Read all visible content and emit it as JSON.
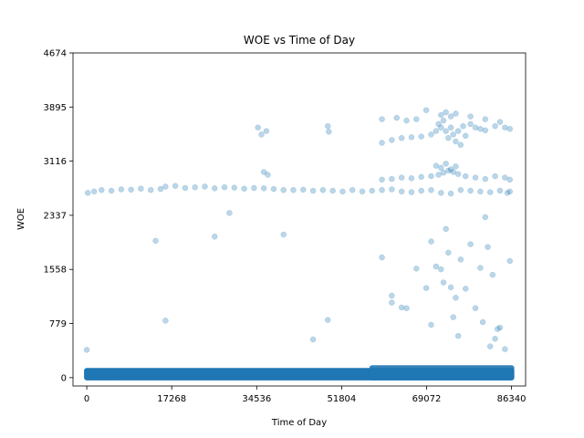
{
  "chart_data": {
    "type": "scatter",
    "title": "WOE vs Time of Day",
    "xlabel": "Time of Day",
    "ylabel": "WOE",
    "xlim": [
      -2800,
      89200
    ],
    "ylim": [
      -120,
      4674
    ],
    "x_ticks": [
      0,
      17268,
      34536,
      51804,
      69072,
      86340
    ],
    "x_tick_labels": [
      "0",
      "17268",
      "34536",
      "51804",
      "69072",
      "86340"
    ],
    "y_ticks": [
      0,
      779,
      1558,
      2337,
      3116,
      3895,
      4674
    ],
    "y_tick_labels": [
      "0",
      "779",
      "1558",
      "2337",
      "3116",
      "3895",
      "4674"
    ],
    "grid": false,
    "marker_color": "#1f77b4",
    "marker_alpha": 0.15,
    "series": [
      {
        "points": [
          [
            200,
            2660
          ],
          [
            1500,
            2680
          ],
          [
            3000,
            2700
          ],
          [
            5000,
            2690
          ],
          [
            7000,
            2710
          ],
          [
            9000,
            2705
          ],
          [
            11000,
            2720
          ],
          [
            13000,
            2700
          ],
          [
            15000,
            2715
          ],
          [
            16000,
            2750
          ],
          [
            18000,
            2760
          ],
          [
            20000,
            2730
          ],
          [
            22000,
            2740
          ],
          [
            24000,
            2750
          ],
          [
            26000,
            2725
          ],
          [
            28000,
            2740
          ],
          [
            30000,
            2735
          ],
          [
            32000,
            2720
          ],
          [
            34000,
            2730
          ],
          [
            36000,
            2725
          ],
          [
            38000,
            2715
          ],
          [
            40000,
            2700
          ],
          [
            42000,
            2700
          ],
          [
            44000,
            2705
          ],
          [
            46000,
            2690
          ],
          [
            48000,
            2700
          ],
          [
            50000,
            2690
          ],
          [
            52000,
            2680
          ],
          [
            54000,
            2700
          ],
          [
            56000,
            2680
          ],
          [
            58000,
            2690
          ],
          [
            60000,
            2700
          ],
          [
            62000,
            2710
          ],
          [
            64000,
            2680
          ],
          [
            66000,
            2670
          ],
          [
            68000,
            2690
          ],
          [
            70000,
            2700
          ],
          [
            72000,
            2660
          ],
          [
            74000,
            2650
          ],
          [
            76000,
            2700
          ],
          [
            78000,
            2690
          ],
          [
            80000,
            2680
          ],
          [
            82000,
            2670
          ],
          [
            84000,
            2690
          ],
          [
            85500,
            2660
          ],
          [
            86000,
            2680
          ],
          [
            60000,
            2850
          ],
          [
            62000,
            2860
          ],
          [
            64000,
            2880
          ],
          [
            66000,
            2870
          ],
          [
            68000,
            2890
          ],
          [
            70000,
            2900
          ],
          [
            71500,
            2920
          ],
          [
            72500,
            2950
          ],
          [
            73500,
            2980
          ],
          [
            74500,
            2960
          ],
          [
            75500,
            2930
          ],
          [
            77000,
            2900
          ],
          [
            79000,
            2880
          ],
          [
            81000,
            2860
          ],
          [
            83000,
            2900
          ],
          [
            85000,
            2880
          ],
          [
            86000,
            2850
          ],
          [
            71000,
            3050
          ],
          [
            72000,
            3020
          ],
          [
            73000,
            3080
          ],
          [
            74000,
            3000
          ],
          [
            75000,
            3040
          ],
          [
            60000,
            3380
          ],
          [
            62000,
            3420
          ],
          [
            64000,
            3450
          ],
          [
            66000,
            3460
          ],
          [
            68000,
            3470
          ],
          [
            70000,
            3500
          ],
          [
            71000,
            3550
          ],
          [
            71500,
            3650
          ],
          [
            72000,
            3600
          ],
          [
            72500,
            3700
          ],
          [
            73000,
            3550
          ],
          [
            73500,
            3450
          ],
          [
            74000,
            3600
          ],
          [
            74500,
            3500
          ],
          [
            75000,
            3400
          ],
          [
            75500,
            3550
          ],
          [
            76000,
            3350
          ],
          [
            76500,
            3620
          ],
          [
            77000,
            3480
          ],
          [
            78000,
            3650
          ],
          [
            79000,
            3600
          ],
          [
            80000,
            3580
          ],
          [
            81000,
            3560
          ],
          [
            83000,
            3620
          ],
          [
            85000,
            3600
          ],
          [
            86000,
            3580
          ],
          [
            72000,
            3780
          ],
          [
            73000,
            3820
          ],
          [
            74000,
            3760
          ],
          [
            75000,
            3800
          ],
          [
            60000,
            3720
          ],
          [
            63000,
            3740
          ],
          [
            65000,
            3700
          ],
          [
            67000,
            3720
          ],
          [
            69000,
            3850
          ],
          [
            78000,
            3760
          ],
          [
            81000,
            3720
          ],
          [
            84000,
            3680
          ],
          [
            34800,
            3600
          ],
          [
            35500,
            3500
          ],
          [
            36500,
            3550
          ],
          [
            36000,
            2960
          ],
          [
            36800,
            2920
          ],
          [
            49000,
            3620
          ],
          [
            49200,
            3540
          ],
          [
            0,
            400
          ],
          [
            14000,
            1970
          ],
          [
            16000,
            820
          ],
          [
            26000,
            2030
          ],
          [
            29000,
            2370
          ],
          [
            40000,
            2060
          ],
          [
            46000,
            550
          ],
          [
            49000,
            830
          ],
          [
            60000,
            1730
          ],
          [
            62000,
            1180
          ],
          [
            62000,
            1080
          ],
          [
            64000,
            1010
          ],
          [
            65000,
            1000
          ],
          [
            67000,
            1570
          ],
          [
            70000,
            1960
          ],
          [
            71000,
            1600
          ],
          [
            72000,
            1560
          ],
          [
            72500,
            1370
          ],
          [
            73000,
            2140
          ],
          [
            73500,
            1800
          ],
          [
            74000,
            1300
          ],
          [
            74500,
            870
          ],
          [
            75000,
            1150
          ],
          [
            75500,
            600
          ],
          [
            76000,
            1700
          ],
          [
            77000,
            1280
          ],
          [
            78000,
            1920
          ],
          [
            79000,
            1000
          ],
          [
            80000,
            1580
          ],
          [
            80500,
            800
          ],
          [
            81000,
            2310
          ],
          [
            81500,
            1880
          ],
          [
            82000,
            450
          ],
          [
            82500,
            1480
          ],
          [
            83500,
            700
          ],
          [
            85000,
            410
          ],
          [
            86000,
            1680
          ],
          [
            84000,
            720
          ],
          [
            83000,
            560
          ],
          [
            70000,
            760
          ],
          [
            69000,
            1290
          ]
        ]
      }
    ],
    "dense_bands": [
      {
        "x_start": 0,
        "x_end": 86340,
        "y_low": 0,
        "y_high": 100
      },
      {
        "x_start": 58000,
        "x_end": 86340,
        "y_low": 0,
        "y_high": 140
      }
    ]
  }
}
